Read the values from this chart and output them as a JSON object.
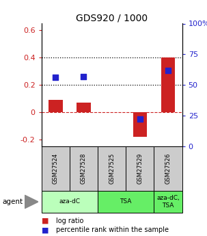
{
  "title": "GDS920 / 1000",
  "samples": [
    "GSM27524",
    "GSM27528",
    "GSM27525",
    "GSM27529",
    "GSM27526"
  ],
  "log_ratios": [
    0.09,
    0.07,
    0.0,
    -0.18,
    0.4
  ],
  "percentile_ranks": [
    56,
    57,
    0,
    22,
    62
  ],
  "ylim_left": [
    -0.25,
    0.65
  ],
  "ylim_right": [
    0,
    100
  ],
  "yticks_left": [
    -0.2,
    0.0,
    0.2,
    0.4,
    0.6
  ],
  "yticks_right": [
    0,
    25,
    50,
    75,
    100
  ],
  "ytick_labels_left": [
    "-0.2",
    "0",
    "0.2",
    "0.4",
    "0.6"
  ],
  "ytick_labels_right": [
    "0",
    "25",
    "50",
    "75",
    "100%"
  ],
  "hlines_dotted": [
    0.2,
    0.4
  ],
  "bar_color": "#cc2222",
  "dot_color": "#2222cc",
  "bar_width": 0.5,
  "dot_size": 40,
  "background_color": "#ffffff",
  "legend_items": [
    "log ratio",
    "percentile rank within the sample"
  ],
  "agent_label": "agent",
  "group_configs": [
    {
      "label": "aza-dC",
      "start": 0,
      "end": 2,
      "color": "#bbffbb"
    },
    {
      "label": "TSA",
      "start": 2,
      "end": 4,
      "color": "#66ee66"
    },
    {
      "label": "aza-dC,\nTSA",
      "start": 4,
      "end": 5,
      "color": "#66ee66"
    }
  ],
  "sample_box_color": "#cccccc",
  "sample_text_fontsize": 6.0,
  "axis_fontsize": 8,
  "title_fontsize": 10
}
